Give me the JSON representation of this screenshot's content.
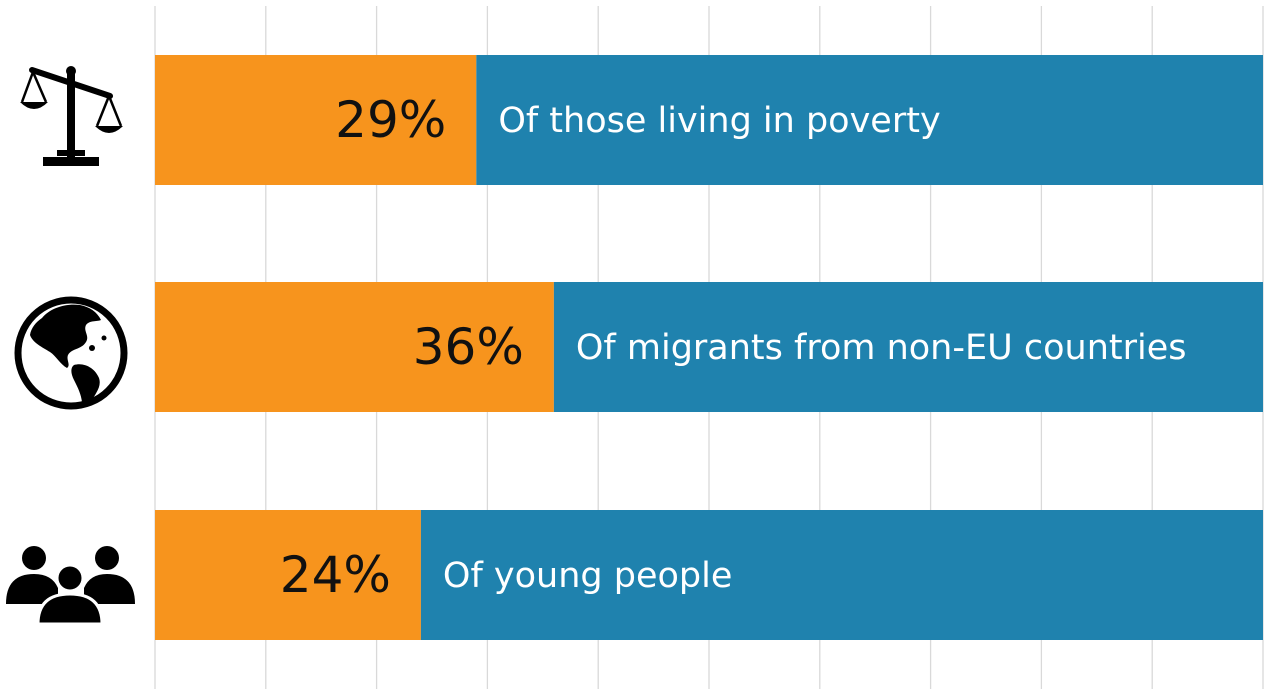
{
  "chart_data": {
    "type": "bar",
    "orientation": "horizontal",
    "stacked": true,
    "categories": [
      "Of those living in poverty",
      "Of migrants from non-EU countries",
      "Of young people"
    ],
    "icons": [
      "scales-icon",
      "globe-icon",
      "people-group-icon"
    ],
    "series": [
      {
        "values": [
          29,
          36,
          24
        ],
        "value_labels": [
          "29%",
          "36%",
          "24%"
        ],
        "color": "#f7941d"
      },
      {
        "values": [
          71,
          64,
          76
        ],
        "color": "#1f82ae"
      }
    ],
    "xlim": [
      0,
      100
    ],
    "grid": true,
    "legend": "none"
  }
}
